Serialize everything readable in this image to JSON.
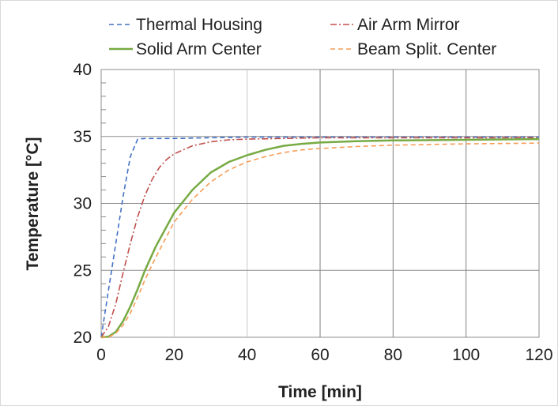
{
  "chart_data": {
    "type": "line",
    "title": "",
    "xlabel": "Time [min]",
    "ylabel": "Temperature [°C]",
    "xlim": [
      0,
      120
    ],
    "ylim": [
      20,
      40
    ],
    "xticks": [
      0,
      20,
      40,
      60,
      80,
      100,
      120
    ],
    "yticks": [
      20,
      25,
      30,
      35,
      40
    ],
    "grid": true,
    "legend_position": "top",
    "series": [
      {
        "name": "Thermal Housing",
        "color": "#4472C4",
        "style": "dashed",
        "x": [
          0,
          2,
          4,
          6,
          8,
          10,
          12,
          20,
          30,
          40,
          60,
          80,
          100,
          120
        ],
        "y": [
          20,
          23.5,
          27,
          30.5,
          33.5,
          34.8,
          34.85,
          34.85,
          34.9,
          34.95,
          34.95,
          34.95,
          34.95,
          34.95
        ]
      },
      {
        "name": "Air Arm Mirror",
        "color": "#C0504D",
        "style": "dashdot",
        "x": [
          0,
          2,
          4,
          6,
          8,
          10,
          12,
          14,
          16,
          18,
          20,
          25,
          30,
          35,
          40,
          50,
          60,
          80,
          100,
          120
        ],
        "y": [
          20,
          20.8,
          22.5,
          24.8,
          27.0,
          29.0,
          30.6,
          31.8,
          32.7,
          33.3,
          33.7,
          34.3,
          34.6,
          34.75,
          34.8,
          34.85,
          34.9,
          34.9,
          34.9,
          34.9
        ]
      },
      {
        "name": "Solid Arm Center",
        "color": "#77AA43",
        "style": "solid",
        "x": [
          0,
          2,
          4,
          6,
          8,
          10,
          12,
          15,
          20,
          25,
          30,
          35,
          40,
          45,
          50,
          55,
          60,
          70,
          80,
          100,
          120
        ],
        "y": [
          20,
          20.05,
          20.4,
          21.2,
          22.3,
          23.6,
          25.0,
          26.8,
          29.3,
          31.0,
          32.3,
          33.1,
          33.6,
          34.0,
          34.3,
          34.45,
          34.55,
          34.65,
          34.7,
          34.75,
          34.8
        ]
      },
      {
        "name": "Beam Split. Center",
        "color": "#F59D56",
        "style": "dashed",
        "x": [
          0,
          2,
          4,
          6,
          8,
          10,
          12,
          15,
          20,
          25,
          30,
          35,
          40,
          45,
          50,
          55,
          60,
          70,
          80,
          100,
          120
        ],
        "y": [
          20,
          20.0,
          20.3,
          20.9,
          21.8,
          23.0,
          24.3,
          26.0,
          28.6,
          30.3,
          31.6,
          32.5,
          33.1,
          33.5,
          33.8,
          34.0,
          34.1,
          34.25,
          34.35,
          34.45,
          34.5
        ]
      }
    ]
  }
}
